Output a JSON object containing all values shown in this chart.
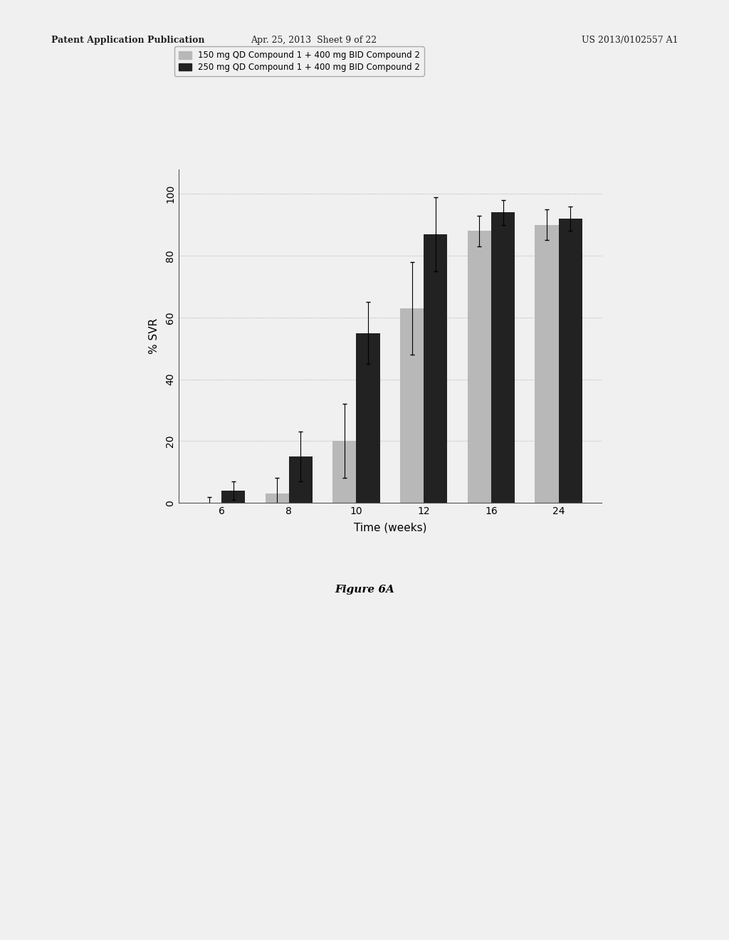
{
  "categories": [
    6,
    8,
    10,
    12,
    16,
    24
  ],
  "light_values": [
    0,
    3,
    20,
    63,
    88,
    90
  ],
  "dark_values": [
    4,
    15,
    55,
    87,
    94,
    92
  ],
  "light_errors": [
    2,
    5,
    12,
    15,
    5,
    5
  ],
  "dark_errors": [
    3,
    8,
    10,
    12,
    4,
    4
  ],
  "light_color": "#b8b8b8",
  "dark_color": "#222222",
  "legend_label_light": "150 mg QD Compound 1 + 400 mg BID Compound 2",
  "legend_label_dark": "250 mg QD Compound 1 + 400 mg BID Compound 2",
  "xlabel": "Time (weeks)",
  "ylabel": "% SVR",
  "ylim": [
    0,
    108
  ],
  "yticks": [
    0,
    20,
    40,
    60,
    80,
    100
  ],
  "title": "",
  "figure_label": "Figure 6A",
  "background_color": "#f0f0f0",
  "header_left": "Patent Application Publication",
  "header_mid": "Apr. 25, 2013  Sheet 9 of 22",
  "header_right": "US 2013/0102557 A1",
  "bar_width": 0.35,
  "grid_color": "#aaaaaa"
}
